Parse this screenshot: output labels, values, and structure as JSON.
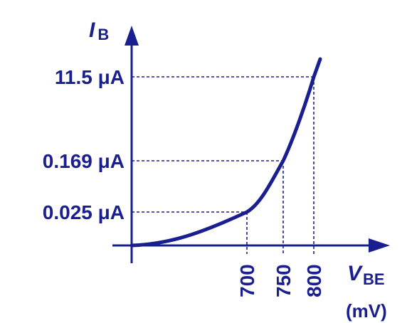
{
  "chart_data": {
    "type": "line",
    "title": "",
    "xlabel": {
      "symbol": "V",
      "subscript": "BE",
      "unit": "(mV)"
    },
    "ylabel": {
      "symbol": "I",
      "subscript": "B"
    },
    "x_ticks": [
      "700",
      "750",
      "800"
    ],
    "y_ticks": [
      {
        "value_uA": 0.025,
        "label": "0.025",
        "unit": "μA"
      },
      {
        "value_uA": 0.169,
        "label": "0.169",
        "unit": "μA"
      },
      {
        "value_uA": 11.5,
        "label": "11.5",
        "unit": "μA"
      }
    ],
    "marked_points": [
      {
        "x_mV": 700,
        "y_uA": 0.025
      },
      {
        "x_mV": 750,
        "y_uA": 0.169
      },
      {
        "x_mV": 800,
        "y_uA": 11.5
      }
    ],
    "y_scale": "nonlinear (schematic exponential)",
    "grid": false,
    "color": "#1a1f8f"
  }
}
